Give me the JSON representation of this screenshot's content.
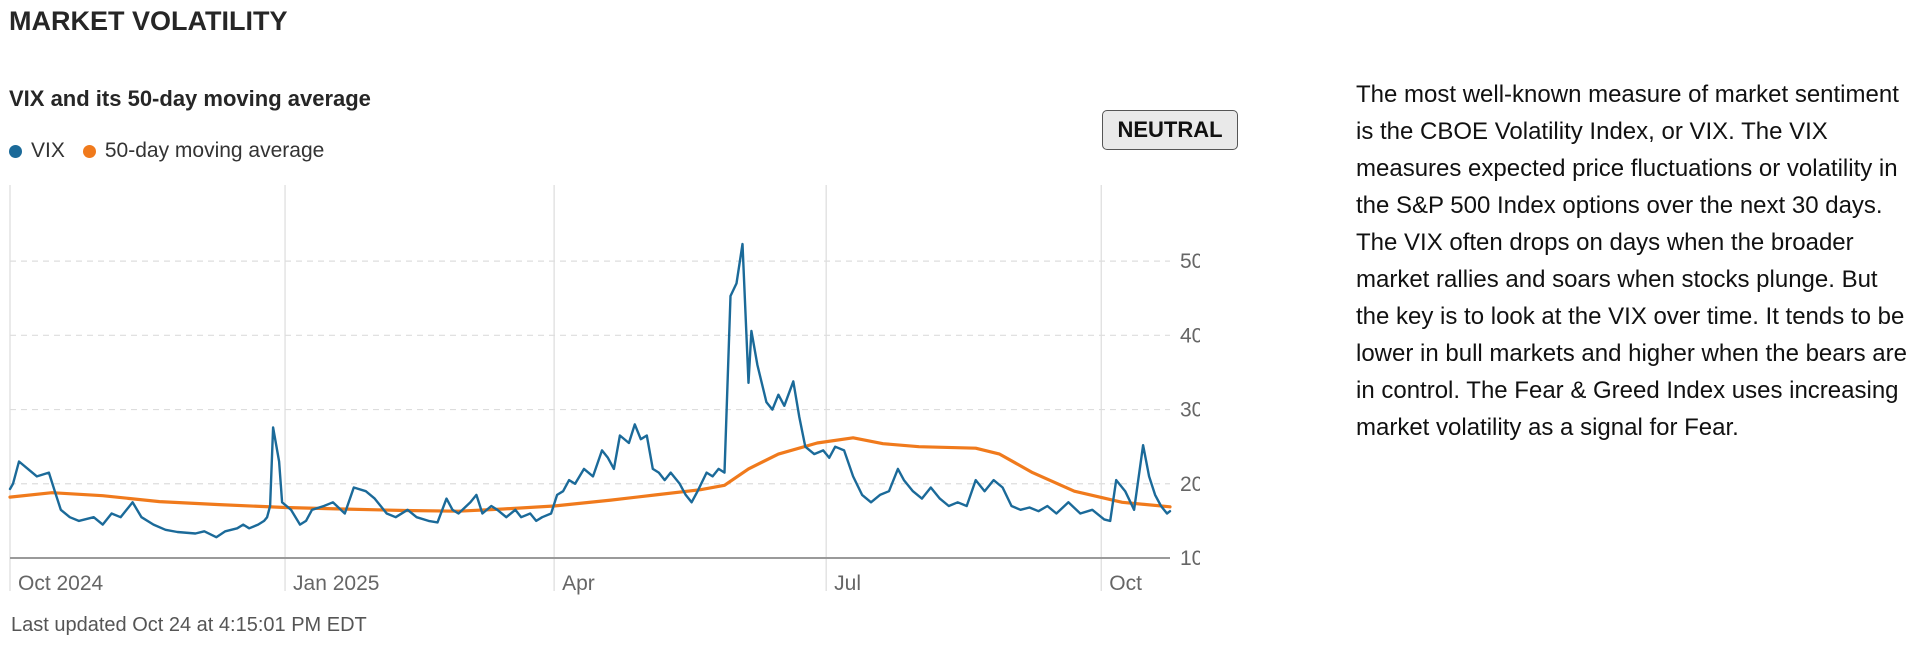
{
  "section_title": "MARKET VOLATILITY",
  "chart_title": "VIX and its 50-day moving average",
  "badge": "NEUTRAL",
  "updated": "Last updated Oct 24 at 4:15:01 PM EDT",
  "description": "The most well-known measure of market sentiment is the CBOE Volatility Index, or VIX. The VIX measures expected price fluctuations or volatility in the S&P 500 Index options over the next 30 days. The VIX often drops on days when the broader market rallies and soars when stocks plunge. But the key is to look at the VIX over time. It tends to be lower in bull markets and higher when the bears are in control. The Fear & Greed Index uses increasing market volatility as a signal for Fear.",
  "colors": {
    "vix": "#1b6a99",
    "ma": "#f07a1c",
    "grid": "#dddddd",
    "axis": "#9a9a9a"
  },
  "chart_data": {
    "type": "line",
    "x_ticks": [
      "Oct 2024",
      "Jan 2025",
      "Apr",
      "Jul",
      "Oct"
    ],
    "x_tick_dates": [
      "2024-10-01",
      "2025-01-01",
      "2025-04-01",
      "2025-07-01",
      "2025-10-01"
    ],
    "y_ticks": [
      "10.00",
      "20.00",
      "30.00",
      "40.00",
      "50.00"
    ],
    "y_tick_values": [
      10,
      20,
      30,
      40,
      50
    ],
    "ylim": [
      10,
      55
    ],
    "xlim": [
      "2024-10-01",
      "2025-10-24"
    ],
    "grid": true,
    "legend_position": "top-left",
    "series": [
      {
        "name": "VIX",
        "color": "#1b6a99",
        "points": [
          [
            "2024-10-01",
            19.3
          ],
          [
            "2024-10-02",
            20.0
          ],
          [
            "2024-10-04",
            23.0
          ],
          [
            "2024-10-07",
            22.0
          ],
          [
            "2024-10-10",
            21.0
          ],
          [
            "2024-10-14",
            21.5
          ],
          [
            "2024-10-16",
            19.0
          ],
          [
            "2024-10-18",
            16.5
          ],
          [
            "2024-10-21",
            15.5
          ],
          [
            "2024-10-24",
            15.0
          ],
          [
            "2024-10-29",
            15.5
          ],
          [
            "2024-11-01",
            14.5
          ],
          [
            "2024-11-04",
            16.0
          ],
          [
            "2024-11-07",
            15.5
          ],
          [
            "2024-11-11",
            17.5
          ],
          [
            "2024-11-14",
            15.5
          ],
          [
            "2024-11-18",
            14.5
          ],
          [
            "2024-11-22",
            13.8
          ],
          [
            "2024-11-26",
            13.5
          ],
          [
            "2024-12-02",
            13.3
          ],
          [
            "2024-12-05",
            13.6
          ],
          [
            "2024-12-09",
            12.8
          ],
          [
            "2024-12-12",
            13.6
          ],
          [
            "2024-12-16",
            14.0
          ],
          [
            "2024-12-18",
            14.5
          ],
          [
            "2024-12-20",
            14.0
          ],
          [
            "2024-12-23",
            14.5
          ],
          [
            "2024-12-25",
            15.0
          ],
          [
            "2024-12-26",
            15.5
          ],
          [
            "2024-12-27",
            17.0
          ],
          [
            "2024-12-28",
            27.6
          ],
          [
            "2024-12-30",
            23.0
          ],
          [
            "2024-12-31",
            17.5
          ],
          [
            "2025-01-03",
            16.5
          ],
          [
            "2025-01-06",
            14.5
          ],
          [
            "2025-01-08",
            15.0
          ],
          [
            "2025-01-10",
            16.5
          ],
          [
            "2025-01-14",
            17.0
          ],
          [
            "2025-01-17",
            17.5
          ],
          [
            "2025-01-21",
            16.0
          ],
          [
            "2025-01-24",
            19.5
          ],
          [
            "2025-01-28",
            19.0
          ],
          [
            "2025-01-31",
            18.0
          ],
          [
            "2025-02-04",
            16.0
          ],
          [
            "2025-02-07",
            15.5
          ],
          [
            "2025-02-11",
            16.5
          ],
          [
            "2025-02-14",
            15.5
          ],
          [
            "2025-02-18",
            15.0
          ],
          [
            "2025-02-21",
            14.8
          ],
          [
            "2025-02-24",
            18.0
          ],
          [
            "2025-02-26",
            16.5
          ],
          [
            "2025-02-28",
            16.0
          ],
          [
            "2025-03-04",
            17.5
          ],
          [
            "2025-03-06",
            18.5
          ],
          [
            "2025-03-08",
            16.0
          ],
          [
            "2025-03-11",
            17.0
          ],
          [
            "2025-03-13",
            16.5
          ],
          [
            "2025-03-16",
            15.5
          ],
          [
            "2025-03-19",
            16.5
          ],
          [
            "2025-03-21",
            15.5
          ],
          [
            "2025-03-24",
            16.0
          ],
          [
            "2025-03-26",
            15.0
          ],
          [
            "2025-03-28",
            15.5
          ],
          [
            "2025-03-31",
            16.0
          ],
          [
            "2025-04-02",
            18.5
          ],
          [
            "2025-04-04",
            19.0
          ],
          [
            "2025-04-06",
            20.5
          ],
          [
            "2025-04-08",
            20.0
          ],
          [
            "2025-04-11",
            22.0
          ],
          [
            "2025-04-14",
            21.0
          ],
          [
            "2025-04-17",
            24.5
          ],
          [
            "2025-04-19",
            23.5
          ],
          [
            "2025-04-21",
            22.0
          ],
          [
            "2025-04-23",
            26.5
          ],
          [
            "2025-04-26",
            25.5
          ],
          [
            "2025-04-28",
            28.0
          ],
          [
            "2025-04-30",
            26.0
          ],
          [
            "2025-05-02",
            26.5
          ],
          [
            "2025-05-04",
            22.0
          ],
          [
            "2025-05-06",
            21.5
          ],
          [
            "2025-05-08",
            20.5
          ],
          [
            "2025-05-10",
            21.5
          ],
          [
            "2025-05-13",
            20.0
          ],
          [
            "2025-05-15",
            18.5
          ],
          [
            "2025-05-17",
            17.5
          ],
          [
            "2025-05-19",
            19.0
          ],
          [
            "2025-05-22",
            21.5
          ],
          [
            "2025-05-24",
            21.0
          ],
          [
            "2025-05-26",
            22.0
          ],
          [
            "2025-05-28",
            21.5
          ],
          [
            "2025-05-30",
            45.3
          ],
          [
            "2025-06-01",
            47.0
          ],
          [
            "2025-06-03",
            52.3
          ],
          [
            "2025-06-05",
            33.6
          ],
          [
            "2025-06-06",
            40.6
          ],
          [
            "2025-06-08",
            36.0
          ],
          [
            "2025-06-11",
            31.0
          ],
          [
            "2025-06-13",
            30.0
          ],
          [
            "2025-06-15",
            32.0
          ],
          [
            "2025-06-17",
            30.5
          ],
          [
            "2025-06-20",
            33.8
          ],
          [
            "2025-06-22",
            29.0
          ],
          [
            "2025-06-24",
            25.0
          ],
          [
            "2025-06-27",
            24.0
          ],
          [
            "2025-06-30",
            24.5
          ],
          [
            "2025-07-02",
            23.5
          ],
          [
            "2025-07-04",
            25.0
          ],
          [
            "2025-07-07",
            24.5
          ],
          [
            "2025-07-10",
            21.0
          ],
          [
            "2025-07-13",
            18.5
          ],
          [
            "2025-07-16",
            17.5
          ],
          [
            "2025-07-19",
            18.5
          ],
          [
            "2025-07-22",
            19.0
          ],
          [
            "2025-07-25",
            22.0
          ],
          [
            "2025-07-27",
            20.5
          ],
          [
            "2025-07-30",
            19.0
          ],
          [
            "2025-08-02",
            18.0
          ],
          [
            "2025-08-05",
            19.5
          ],
          [
            "2025-08-08",
            18.0
          ],
          [
            "2025-08-11",
            17.0
          ],
          [
            "2025-08-14",
            17.5
          ],
          [
            "2025-08-17",
            17.0
          ],
          [
            "2025-08-20",
            20.5
          ],
          [
            "2025-08-23",
            19.0
          ],
          [
            "2025-08-26",
            20.5
          ],
          [
            "2025-08-29",
            19.5
          ],
          [
            "2025-09-01",
            17.0
          ],
          [
            "2025-09-04",
            16.5
          ],
          [
            "2025-09-07",
            16.8
          ],
          [
            "2025-09-10",
            16.3
          ],
          [
            "2025-09-13",
            17.0
          ],
          [
            "2025-09-16",
            16.0
          ],
          [
            "2025-09-20",
            17.5
          ],
          [
            "2025-09-24",
            16.0
          ],
          [
            "2025-09-28",
            16.5
          ],
          [
            "2025-10-02",
            15.2
          ],
          [
            "2025-10-04",
            15.0
          ],
          [
            "2025-10-06",
            20.5
          ],
          [
            "2025-10-09",
            19.0
          ],
          [
            "2025-10-12",
            16.5
          ],
          [
            "2025-10-15",
            25.2
          ],
          [
            "2025-10-17",
            21.0
          ],
          [
            "2025-10-19",
            18.5
          ],
          [
            "2025-10-21",
            17.0
          ],
          [
            "2025-10-23",
            16.0
          ],
          [
            "2025-10-24",
            16.3
          ]
        ]
      },
      {
        "name": "50-day moving average",
        "color": "#f07a1c",
        "points": [
          [
            "2024-10-01",
            18.2
          ],
          [
            "2024-10-15",
            18.8
          ],
          [
            "2024-11-01",
            18.4
          ],
          [
            "2024-11-20",
            17.6
          ],
          [
            "2024-12-10",
            17.2
          ],
          [
            "2025-01-01",
            16.8
          ],
          [
            "2025-01-20",
            16.6
          ],
          [
            "2025-02-10",
            16.4
          ],
          [
            "2025-02-28",
            16.3
          ],
          [
            "2025-03-15",
            16.6
          ],
          [
            "2025-04-01",
            17.0
          ],
          [
            "2025-04-20",
            17.8
          ],
          [
            "2025-05-05",
            18.5
          ],
          [
            "2025-05-20",
            19.2
          ],
          [
            "2025-05-28",
            19.8
          ],
          [
            "2025-06-05",
            22.0
          ],
          [
            "2025-06-15",
            24.0
          ],
          [
            "2025-06-28",
            25.5
          ],
          [
            "2025-07-10",
            26.2
          ],
          [
            "2025-07-20",
            25.4
          ],
          [
            "2025-08-01",
            25.0
          ],
          [
            "2025-08-20",
            24.8
          ],
          [
            "2025-08-28",
            24.0
          ],
          [
            "2025-09-08",
            21.5
          ],
          [
            "2025-09-22",
            19.0
          ],
          [
            "2025-10-08",
            17.5
          ],
          [
            "2025-10-24",
            16.9
          ]
        ]
      }
    ]
  }
}
